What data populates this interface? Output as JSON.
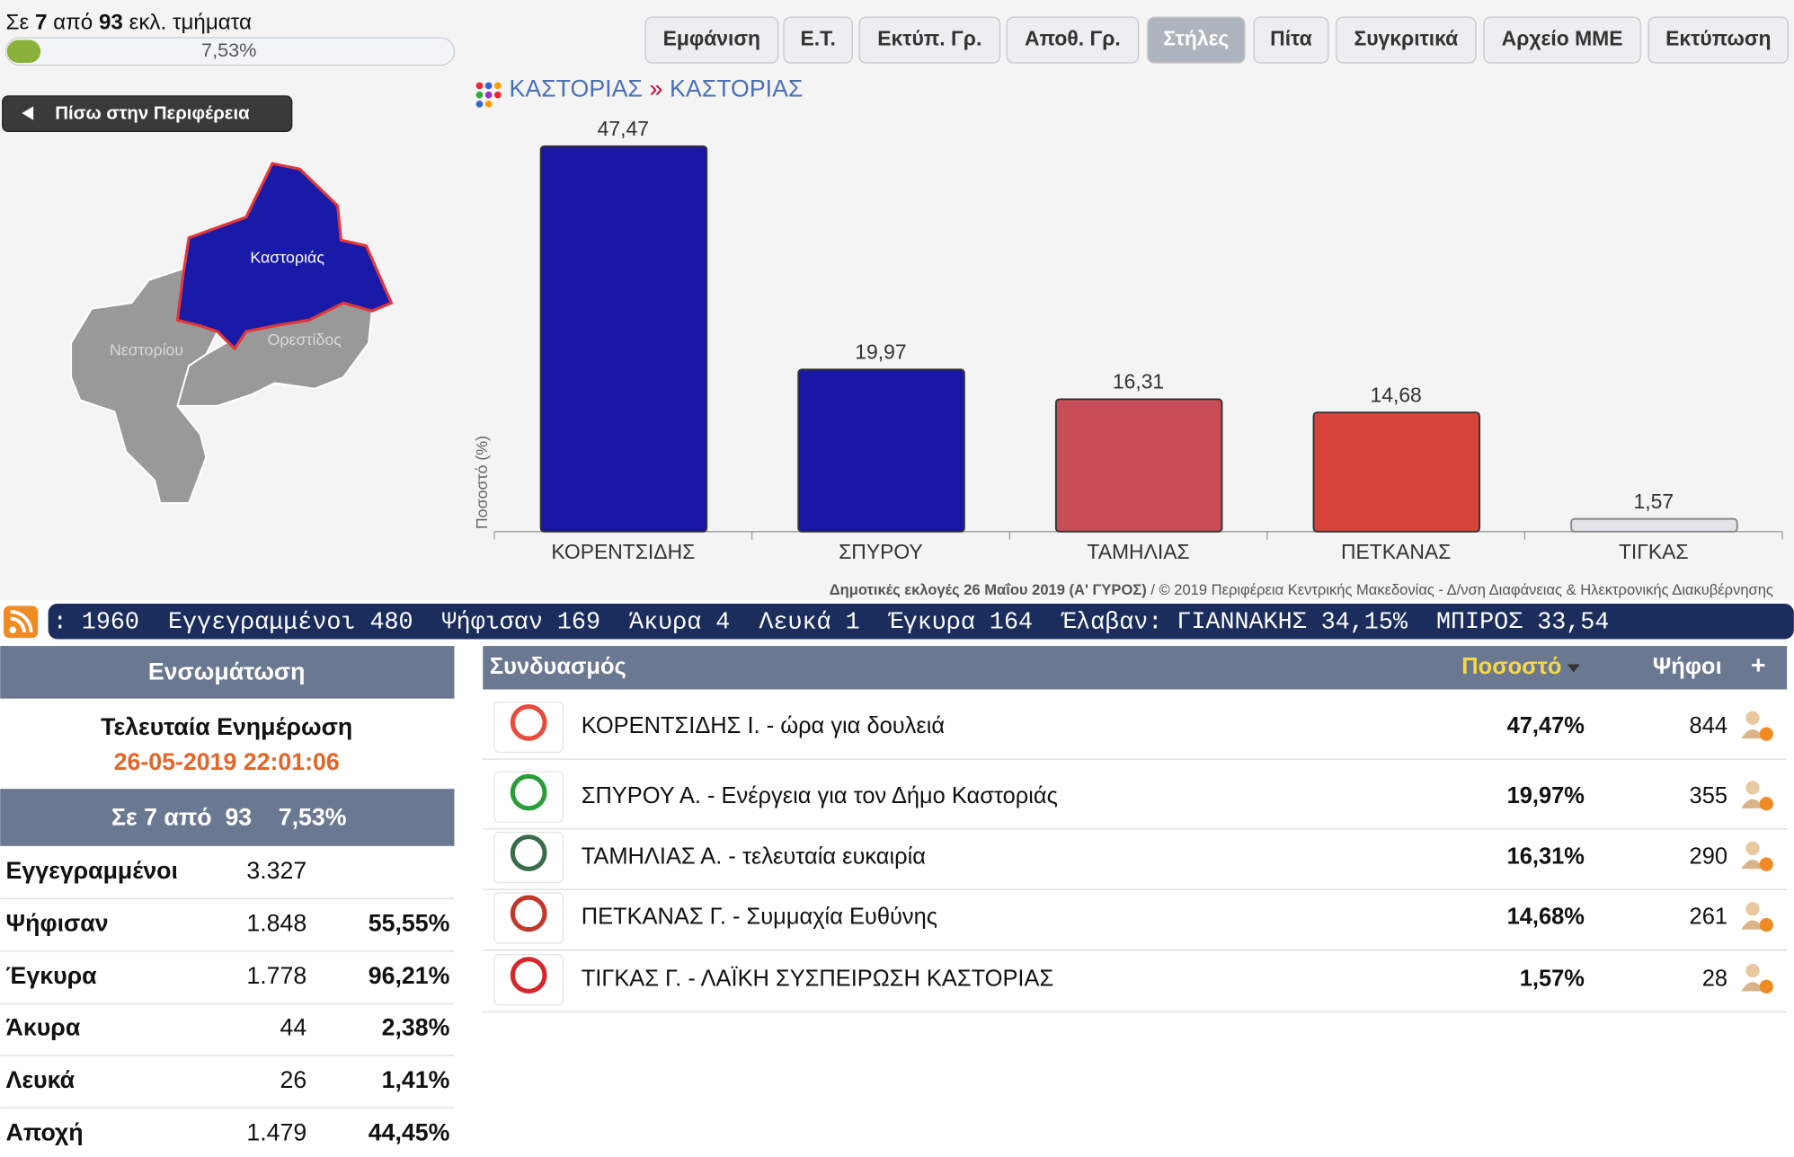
{
  "header": {
    "status": [
      "Σε ",
      "7",
      " από ",
      "93",
      " εκλ. τμήματα"
    ],
    "progress": {
      "value": 7.53,
      "label": "7,53%"
    }
  },
  "buttons": [
    "Εμφάνιση",
    "Ε.Τ.",
    "Εκτύπ. Γρ.",
    "Αποθ. Γρ.",
    "Στήλες",
    "Πίτα",
    "Συγκριτικά",
    "Αρχείο ΜΜΕ",
    "Εκτύπωση"
  ],
  "active_button": 4,
  "back_button": "Πίσω στην Περιφέρεια",
  "map": {
    "labels": [
      "Καστοριάς",
      "Νεστορίου",
      "Ορεστίδος"
    ]
  },
  "chart_data": {
    "type": "bar",
    "breadcrumb": [
      "ΚΑΣΤΟΡΙΑΣ",
      "»",
      "ΚΑΣΤΟΡΙΑΣ"
    ],
    "y_label": "Ποσοστό (%)",
    "categories": [
      "ΚΟΡΕΝΤΣΙΔΗΣ",
      "ΣΠΥΡΟΥ",
      "ΤΑΜΗΛΙΑΣ",
      "ΠΕΤΚΑΝΑΣ",
      "ΤΙΓΚΑΣ"
    ],
    "values": [
      47.47,
      19.97,
      16.31,
      14.68,
      1.57
    ],
    "value_labels": [
      "47,47",
      "19,97",
      "16,31",
      "14,68",
      "1,57"
    ],
    "colors": [
      "#1717a3",
      "#1717a3",
      "#c94d57",
      "#d9443b",
      "#e2e4e8"
    ],
    "ylim": [
      0,
      50
    ],
    "footer": [
      "Δημοτικές εκλογές 26 Μαΐου 2019 (Α' ΓΥΡΟΣ)",
      " / © 2019 Περιφέρεια Κεντρικής Μακεδονίας - Δ/νση Διαφάνειας & Ηλεκτρονικής Διακυβέρνησης"
    ]
  },
  "ticker": ": 1960  Εγγεγραμμένοι 480  Ψήφισαν 169  Άκυρα 4  Λευκά 1  Έγκυρα 164  Έλαβαν: ΓΙΑΝΝΑΚΗΣ 34,15%  ΜΠΙΡΟΣ 33,54",
  "summary": {
    "title": "Ενσωμάτωση",
    "update_label": "Τελευταία Ενημέρωση",
    "update_time": "26-05-2019 22:01:06",
    "progress": [
      "Σε 7 από  93",
      "7,53%"
    ],
    "rows": [
      [
        "Εγγεγραμμένοι",
        "3.327"
      ],
      [
        "Ψήφισαν",
        "1.848",
        "55,55%"
      ],
      [
        "Έγκυρα",
        "1.778",
        "96,21%"
      ],
      [
        "Άκυρα",
        "44",
        "2,38%"
      ],
      [
        "Λευκά",
        "26",
        "1,41%"
      ],
      [
        "Αποχή",
        "1.479",
        "44,45%"
      ]
    ]
  },
  "table": {
    "columns": [
      "Συνδυασμός",
      "Ποσοστό",
      "Ψήφοι",
      "+"
    ],
    "rows": [
      [
        "ΚΟΡΕΝΤΣΙΔΗΣ Ι. - ώρα για δουλειά",
        "47,47%",
        "844"
      ],
      [
        "ΣΠΥΡΟΥ Α. - Ενέργεια για τον Δήμο Καστοριάς",
        "19,97%",
        "355"
      ],
      [
        "ΤΑΜΗΛΙΑΣ Α. - τελευταία ευκαιρία",
        "16,31%",
        "290"
      ],
      [
        "ΠΕΤΚΑΝΑΣ Γ. - Συμμαχία Ευθύνης",
        "14,68%",
        "261"
      ],
      [
        "ΤΙΓΚΑΣ Γ. - ΛΑΪΚΗ ΣΥΣΠΕΙΡΩΣΗ ΚΑΣΤΟΡΙΑΣ",
        "1,57%",
        "28"
      ]
    ]
  }
}
